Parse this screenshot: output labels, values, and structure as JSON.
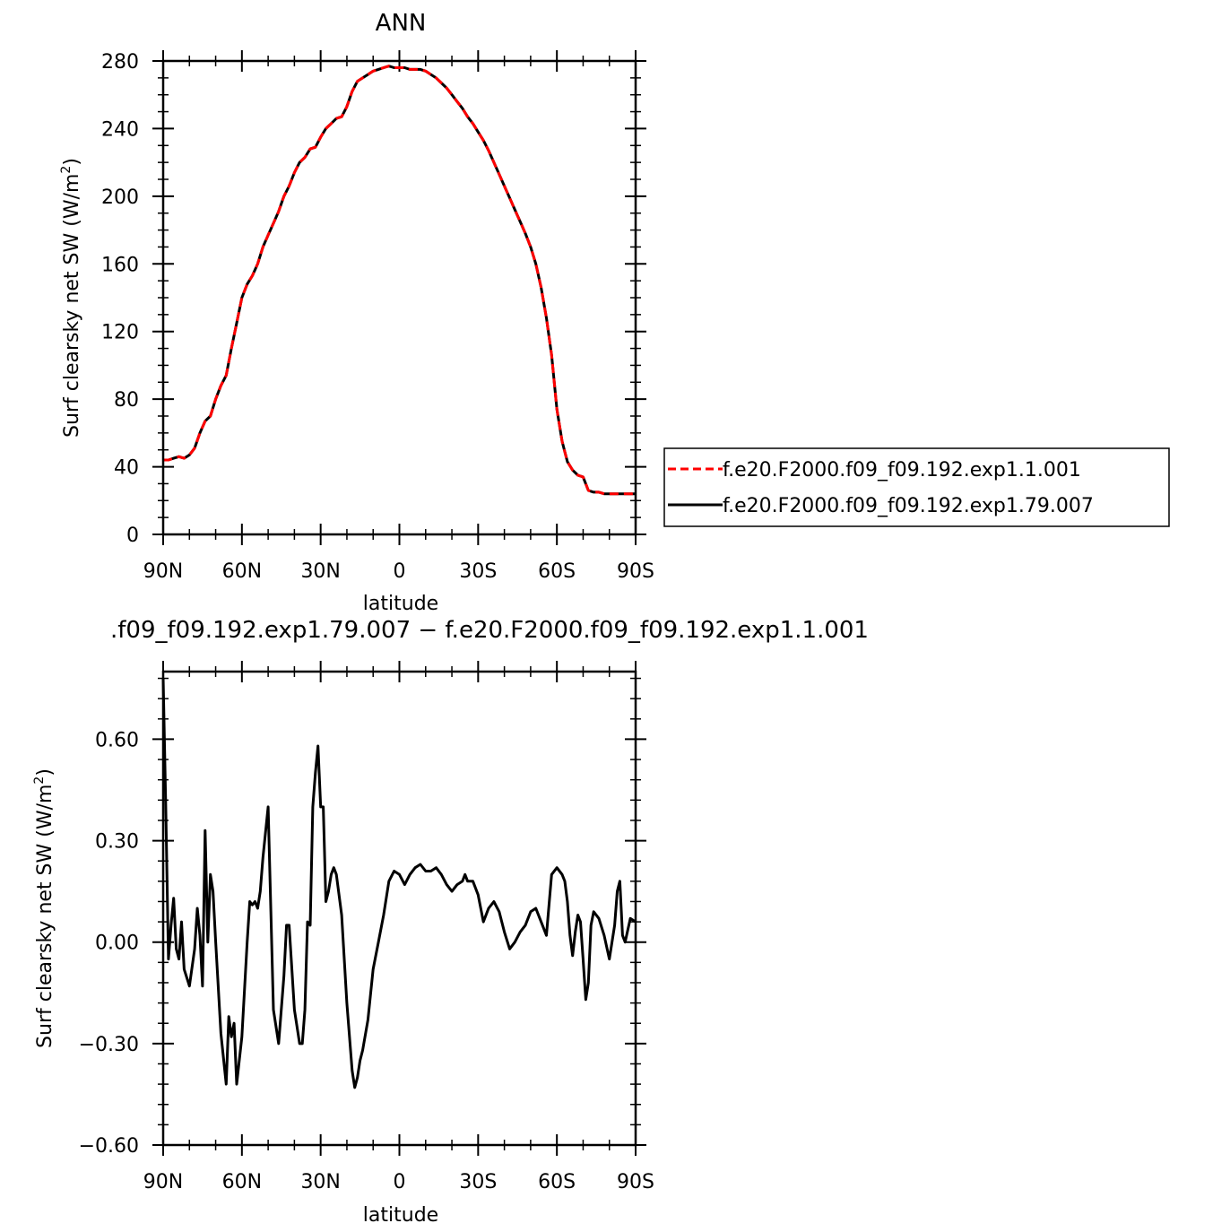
{
  "chart_data": [
    {
      "type": "line",
      "title": "ANN",
      "xlabel": "latitude",
      "ylabel_main": "Surf clearsky net SW (W/m",
      "ylabel_sup": "2",
      "ylabel_close": ")",
      "x_domain": [
        90,
        -90
      ],
      "x_ticks": [
        90,
        60,
        30,
        0,
        -30,
        -60,
        -90
      ],
      "x_tick_labels": [
        "90N",
        "60N",
        "30N",
        "0",
        "30S",
        "60S",
        "90S"
      ],
      "ylim": [
        0,
        280
      ],
      "y_ticks": [
        0,
        40,
        80,
        120,
        160,
        200,
        240,
        280
      ],
      "y_tick_labels": [
        "0",
        "40",
        "80",
        "120",
        "160",
        "200",
        "240",
        "280"
      ],
      "legend_position": "right",
      "series": [
        {
          "name": "f.e20.F2000.f09_f09.192.exp1.1.001",
          "color": "#ff0000",
          "style": "dashed",
          "x": [
            90,
            88,
            86,
            84,
            82,
            80,
            78,
            76,
            74,
            72,
            70,
            68,
            66,
            64,
            62,
            60,
            58,
            56,
            54,
            52,
            50,
            48,
            46,
            44,
            42,
            40,
            38,
            36,
            34,
            32,
            30,
            28,
            26,
            24,
            22,
            20,
            18,
            16,
            14,
            12,
            10,
            8,
            6,
            4,
            2,
            0,
            -2,
            -4,
            -6,
            -8,
            -10,
            -12,
            -14,
            -16,
            -18,
            -20,
            -22,
            -24,
            -26,
            -28,
            -30,
            -32,
            -34,
            -36,
            -38,
            -40,
            -42,
            -44,
            -46,
            -48,
            -50,
            -52,
            -54,
            -56,
            -58,
            -60,
            -62,
            -64,
            -66,
            -68,
            -70,
            -72,
            -74,
            -76,
            -78,
            -80,
            -82,
            -84,
            -86,
            -88,
            -90
          ],
          "y": [
            44,
            44,
            45,
            46,
            45,
            47,
            51,
            60,
            67,
            70,
            80,
            88,
            94,
            110,
            125,
            140,
            148,
            153,
            160,
            170,
            177,
            184,
            191,
            200,
            206,
            214,
            220,
            223,
            228,
            229,
            235,
            240,
            243,
            246,
            247,
            253,
            262,
            268,
            270,
            272,
            274,
            275,
            276,
            277,
            276,
            276,
            276,
            275,
            275,
            275,
            274,
            272,
            270,
            267,
            264,
            260,
            256,
            252,
            247,
            243,
            238,
            233,
            227,
            220,
            213,
            206,
            199,
            192,
            185,
            178,
            170,
            160,
            146,
            128,
            106,
            74,
            55,
            43,
            38,
            35,
            34,
            26,
            25,
            25,
            24,
            24,
            24,
            24,
            24,
            24,
            24
          ]
        },
        {
          "name": "f.e20.F2000.f09_f09.192.exp1.79.007",
          "color": "#000000",
          "style": "solid",
          "x": [
            90,
            88,
            86,
            84,
            82,
            80,
            78,
            76,
            74,
            72,
            70,
            68,
            66,
            64,
            62,
            60,
            58,
            56,
            54,
            52,
            50,
            48,
            46,
            44,
            42,
            40,
            38,
            36,
            34,
            32,
            30,
            28,
            26,
            24,
            22,
            20,
            18,
            16,
            14,
            12,
            10,
            8,
            6,
            4,
            2,
            0,
            -2,
            -4,
            -6,
            -8,
            -10,
            -12,
            -14,
            -16,
            -18,
            -20,
            -22,
            -24,
            -26,
            -28,
            -30,
            -32,
            -34,
            -36,
            -38,
            -40,
            -42,
            -44,
            -46,
            -48,
            -50,
            -52,
            -54,
            -56,
            -58,
            -60,
            -62,
            -64,
            -66,
            -68,
            -70,
            -72,
            -74,
            -76,
            -78,
            -80,
            -82,
            -84,
            -86,
            -88,
            -90
          ],
          "y": [
            44,
            44,
            45,
            46,
            45,
            47,
            51,
            60,
            67,
            70,
            80,
            88,
            94,
            110,
            125,
            140,
            148,
            153,
            160,
            170,
            177,
            184,
            191,
            200,
            206,
            214,
            220,
            223,
            228,
            229,
            235,
            240,
            243,
            246,
            247,
            253,
            262,
            268,
            270,
            272,
            274,
            275,
            276,
            277,
            276,
            276,
            276,
            275,
            275,
            275,
            274,
            272,
            270,
            267,
            264,
            260,
            256,
            252,
            247,
            243,
            238,
            233,
            227,
            220,
            213,
            206,
            199,
            192,
            185,
            178,
            170,
            160,
            146,
            128,
            106,
            74,
            55,
            43,
            38,
            35,
            34,
            26,
            25,
            25,
            24,
            24,
            24,
            24,
            24,
            24,
            24
          ]
        }
      ]
    },
    {
      "type": "line",
      "title": ".f09_f09.192.exp1.79.007 − f.e20.F2000.f09_f09.192.exp1.1.001",
      "xlabel": "latitude",
      "ylabel_main": "Surf clearsky net SW (W/m",
      "ylabel_sup": "2",
      "ylabel_close": ")",
      "x_domain": [
        90,
        -90
      ],
      "x_ticks": [
        90,
        60,
        30,
        0,
        -30,
        -60,
        -90
      ],
      "x_tick_labels": [
        "90N",
        "60N",
        "30N",
        "0",
        "30S",
        "60S",
        "90S"
      ],
      "ylim": [
        -0.6,
        0.8
      ],
      "y_ticks": [
        -0.6,
        -0.3,
        0,
        0.3,
        0.6
      ],
      "y_tick_labels": [
        "−0.60",
        "−0.30",
        "0.00",
        "0.30",
        "0.60"
      ],
      "series": [
        {
          "color": "#000000",
          "style": "solid",
          "x": [
            90,
            89,
            88,
            87,
            86,
            85,
            84,
            83,
            82,
            80,
            78,
            77,
            76,
            75,
            74,
            73,
            72,
            71,
            70,
            68,
            66,
            65,
            64,
            63,
            62,
            60,
            58,
            57,
            56,
            55,
            54,
            53,
            52,
            50,
            48,
            46,
            44,
            43,
            42,
            40,
            38,
            37,
            36,
            35,
            34,
            33,
            32,
            31,
            30,
            29,
            28,
            27,
            26,
            25,
            24,
            22,
            20,
            18,
            17,
            16,
            15,
            14,
            12,
            10,
            8,
            6,
            4,
            2,
            0,
            -2,
            -4,
            -6,
            -8,
            -10,
            -12,
            -14,
            -16,
            -18,
            -20,
            -22,
            -24,
            -25,
            -26,
            -28,
            -30,
            -32,
            -34,
            -36,
            -38,
            -40,
            -42,
            -44,
            -46,
            -48,
            -50,
            -52,
            -54,
            -56,
            -58,
            -60,
            -62,
            -63,
            -64,
            -65,
            -66,
            -67,
            -68,
            -69,
            -70,
            -71,
            -72,
            -73,
            -74,
            -76,
            -78,
            -80,
            -82,
            -83,
            -84,
            -85,
            -86,
            -88,
            -90
          ],
          "y": [
            0.78,
            0.4,
            -0.05,
            0.05,
            0.13,
            -0.02,
            -0.05,
            0.06,
            -0.08,
            -0.13,
            -0.02,
            0.1,
            0.02,
            -0.13,
            0.33,
            0.0,
            0.2,
            0.15,
            0.0,
            -0.27,
            -0.42,
            -0.22,
            -0.28,
            -0.24,
            -0.42,
            -0.28,
            0.0,
            0.12,
            0.11,
            0.12,
            0.1,
            0.15,
            0.25,
            0.4,
            -0.2,
            -0.3,
            -0.1,
            0.05,
            0.05,
            -0.2,
            -0.3,
            -0.3,
            -0.2,
            0.06,
            0.05,
            0.4,
            0.5,
            0.58,
            0.4,
            0.4,
            0.12,
            0.15,
            0.2,
            0.22,
            0.2,
            0.08,
            -0.18,
            -0.38,
            -0.43,
            -0.4,
            -0.35,
            -0.32,
            -0.23,
            -0.08,
            0.0,
            0.08,
            0.18,
            0.21,
            0.2,
            0.17,
            0.2,
            0.22,
            0.23,
            0.21,
            0.21,
            0.22,
            0.2,
            0.17,
            0.15,
            0.17,
            0.18,
            0.2,
            0.18,
            0.18,
            0.14,
            0.06,
            0.1,
            0.12,
            0.09,
            0.03,
            -0.02,
            0.0,
            0.03,
            0.05,
            0.09,
            0.1,
            0.06,
            0.02,
            0.2,
            0.22,
            0.2,
            0.18,
            0.12,
            0.02,
            -0.04,
            0.03,
            0.08,
            0.06,
            -0.05,
            -0.17,
            -0.12,
            0.05,
            0.09,
            0.07,
            0.02,
            -0.05,
            0.05,
            0.15,
            0.18,
            0.02,
            0.0,
            0.07,
            0.06
          ]
        }
      ]
    }
  ]
}
